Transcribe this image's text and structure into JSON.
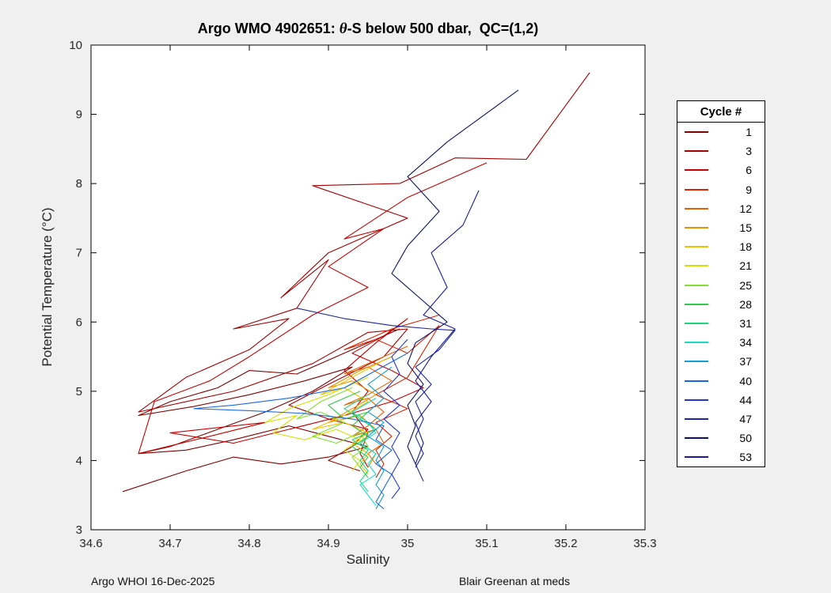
{
  "title": {
    "prefix": "Argo WMO 4902651: ",
    "theta": "θ",
    "suffix": "-S below 500 dbar,  QC=(1,2)"
  },
  "footer": {
    "left": "Argo WHOI 16-Dec-2025",
    "right": "Blair Greenan at meds"
  },
  "legend": {
    "title": "Cycle #"
  },
  "chart_data": {
    "type": "line",
    "title": "Argo WMO 4902651: θ-S below 500 dbar, QC=(1,2)",
    "xlabel": "Salinity",
    "ylabel": "Potential Temperature (°C)",
    "xlim": [
      34.6,
      35.3
    ],
    "ylim": [
      3,
      10
    ],
    "xticks": [
      34.6,
      34.7,
      34.8,
      34.9,
      35.0,
      35.1,
      35.2,
      35.3
    ],
    "xtick_labels": [
      "34.6",
      "34.7",
      "34.8",
      "34.9",
      "35",
      "35.1",
      "35.2",
      "35.3"
    ],
    "yticks": [
      3,
      4,
      5,
      6,
      7,
      8,
      9,
      10
    ],
    "ytick_labels": [
      "3",
      "4",
      "5",
      "6",
      "7",
      "8",
      "9",
      "10"
    ],
    "grid": false,
    "legend_position": "right-outside",
    "legend_title": "Cycle #",
    "series": [
      {
        "name": "1",
        "color": "#800000",
        "points": [
          [
            34.99,
            5.9
          ],
          [
            34.93,
            5.6
          ],
          [
            34.86,
            5.25
          ],
          [
            34.8,
            5.3
          ],
          [
            34.76,
            5.05
          ],
          [
            34.7,
            4.85
          ],
          [
            34.66,
            4.65
          ],
          [
            34.73,
            4.78
          ],
          [
            34.8,
            4.95
          ],
          [
            34.87,
            5.15
          ],
          [
            34.93,
            5.35
          ],
          [
            34.88,
            5.0
          ],
          [
            34.82,
            4.7
          ],
          [
            34.76,
            4.45
          ],
          [
            34.7,
            4.2
          ],
          [
            34.66,
            4.1
          ],
          [
            34.72,
            4.15
          ],
          [
            34.78,
            4.3
          ],
          [
            34.85,
            4.5
          ],
          [
            34.9,
            4.35
          ],
          [
            34.95,
            4.2
          ],
          [
            34.9,
            4.05
          ],
          [
            34.84,
            3.95
          ],
          [
            34.78,
            4.05
          ],
          [
            34.72,
            3.85
          ],
          [
            34.64,
            3.55
          ]
        ]
      },
      {
        "name": "3",
        "color": "#a50000",
        "points": [
          [
            35.23,
            9.6
          ],
          [
            35.15,
            8.35
          ],
          [
            35.06,
            8.37
          ],
          [
            34.99,
            8.0
          ],
          [
            34.88,
            7.97
          ],
          [
            35.0,
            7.5
          ],
          [
            34.9,
            7.0
          ],
          [
            34.84,
            6.35
          ],
          [
            34.9,
            6.9
          ],
          [
            34.86,
            6.2
          ],
          [
            34.78,
            5.9
          ],
          [
            34.85,
            6.05
          ],
          [
            34.8,
            5.6
          ],
          [
            34.72,
            5.2
          ],
          [
            34.66,
            4.7
          ],
          [
            34.78,
            5.0
          ],
          [
            34.88,
            5.4
          ],
          [
            34.95,
            5.85
          ],
          [
            35.0,
            5.9
          ],
          [
            34.97,
            5.5
          ],
          [
            34.9,
            5.1
          ],
          [
            34.85,
            4.8
          ],
          [
            34.9,
            4.6
          ],
          [
            34.95,
            4.45
          ],
          [
            34.93,
            4.2
          ],
          [
            34.9,
            4.0
          ],
          [
            34.94,
            3.85
          ]
        ]
      },
      {
        "name": "6",
        "color": "#c40000",
        "points": [
          [
            35.1,
            8.3
          ],
          [
            35.0,
            7.8
          ],
          [
            34.92,
            7.2
          ],
          [
            34.97,
            7.35
          ],
          [
            34.9,
            6.8
          ],
          [
            34.95,
            6.5
          ],
          [
            34.88,
            6.1
          ],
          [
            34.8,
            5.5
          ],
          [
            34.75,
            5.15
          ],
          [
            34.68,
            4.85
          ],
          [
            34.66,
            4.1
          ],
          [
            34.75,
            4.35
          ],
          [
            34.82,
            4.55
          ],
          [
            34.7,
            4.4
          ],
          [
            34.78,
            4.25
          ],
          [
            34.85,
            4.45
          ],
          [
            34.92,
            4.65
          ],
          [
            34.98,
            4.85
          ],
          [
            35.02,
            5.05
          ],
          [
            34.98,
            5.3
          ],
          [
            34.93,
            5.55
          ],
          [
            34.97,
            5.8
          ],
          [
            35.0,
            6.05
          ],
          [
            34.96,
            5.7
          ],
          [
            34.92,
            5.3
          ],
          [
            34.95,
            5.0
          ],
          [
            34.93,
            4.7
          ],
          [
            34.95,
            4.4
          ],
          [
            34.94,
            4.1
          ],
          [
            34.95,
            3.9
          ]
        ]
      },
      {
        "name": "9",
        "color": "#db2500",
        "points": [
          [
            35.04,
            6.1
          ],
          [
            34.98,
            5.9
          ],
          [
            34.92,
            5.6
          ],
          [
            34.96,
            5.75
          ],
          [
            35.0,
            5.55
          ],
          [
            35.04,
            5.95
          ],
          [
            35.0,
            5.2
          ],
          [
            34.96,
            4.95
          ],
          [
            35.0,
            4.75
          ],
          [
            34.96,
            4.55
          ],
          [
            34.98,
            4.35
          ],
          [
            34.96,
            4.15
          ],
          [
            34.97,
            3.95
          ],
          [
            34.96,
            3.75
          ]
        ]
      },
      {
        "name": "12",
        "color": "#e65f00",
        "points": [
          [
            35.0,
            5.65
          ],
          [
            34.96,
            5.45
          ],
          [
            34.92,
            5.25
          ],
          [
            34.95,
            5.35
          ],
          [
            34.98,
            5.15
          ],
          [
            34.95,
            4.95
          ],
          [
            34.92,
            4.8
          ],
          [
            34.95,
            4.9
          ],
          [
            34.97,
            4.7
          ],
          [
            34.95,
            4.5
          ],
          [
            34.93,
            4.35
          ],
          [
            34.96,
            4.45
          ],
          [
            34.97,
            4.25
          ],
          [
            34.95,
            4.1
          ],
          [
            34.96,
            3.95
          ]
        ]
      },
      {
        "name": "15",
        "color": "#e69100",
        "points": [
          [
            34.98,
            5.5
          ],
          [
            34.94,
            5.3
          ],
          [
            34.9,
            5.05
          ],
          [
            34.93,
            5.15
          ],
          [
            34.96,
            4.95
          ],
          [
            34.93,
            4.75
          ],
          [
            34.9,
            4.55
          ],
          [
            34.94,
            4.65
          ],
          [
            34.96,
            4.45
          ],
          [
            34.94,
            4.25
          ],
          [
            34.96,
            4.1
          ],
          [
            34.95,
            3.9
          ]
        ]
      },
      {
        "name": "18",
        "color": "#f0c000",
        "points": [
          [
            34.97,
            5.45
          ],
          [
            34.93,
            5.2
          ],
          [
            34.89,
            4.95
          ],
          [
            34.92,
            5.05
          ],
          [
            34.95,
            4.85
          ],
          [
            34.92,
            4.65
          ],
          [
            34.88,
            4.45
          ],
          [
            34.92,
            4.55
          ],
          [
            34.95,
            4.4
          ],
          [
            34.93,
            4.25
          ],
          [
            34.95,
            4.1
          ],
          [
            34.94,
            3.95
          ],
          [
            34.95,
            3.8
          ]
        ]
      },
      {
        "name": "21",
        "color": "#d6e000",
        "points": [
          [
            34.95,
            5.2
          ],
          [
            34.9,
            4.95
          ],
          [
            34.85,
            4.75
          ],
          [
            34.82,
            4.55
          ],
          [
            34.86,
            4.65
          ],
          [
            34.83,
            4.4
          ],
          [
            34.87,
            4.3
          ],
          [
            34.91,
            4.45
          ],
          [
            34.94,
            4.3
          ],
          [
            34.92,
            4.15
          ],
          [
            34.94,
            4.0
          ],
          [
            34.93,
            3.85
          ]
        ]
      },
      {
        "name": "25",
        "color": "#7fe030",
        "points": [
          [
            34.93,
            5.05
          ],
          [
            34.89,
            4.85
          ],
          [
            34.86,
            4.6
          ],
          [
            34.89,
            4.7
          ],
          [
            34.92,
            4.55
          ],
          [
            34.88,
            4.35
          ],
          [
            34.91,
            4.25
          ],
          [
            34.94,
            4.4
          ],
          [
            34.95,
            4.2
          ],
          [
            34.93,
            4.05
          ],
          [
            34.94,
            3.9
          ]
        ]
      },
      {
        "name": "28",
        "color": "#2ecc44",
        "points": [
          [
            34.94,
            5.0
          ],
          [
            34.9,
            4.8
          ],
          [
            34.92,
            4.6
          ],
          [
            34.95,
            4.7
          ],
          [
            34.93,
            4.5
          ],
          [
            34.95,
            4.35
          ],
          [
            34.93,
            4.2
          ],
          [
            34.95,
            4.05
          ],
          [
            34.94,
            3.9
          ],
          [
            34.95,
            3.75
          ]
        ]
      },
      {
        "name": "31",
        "color": "#17d97a",
        "points": [
          [
            34.95,
            4.95
          ],
          [
            34.92,
            4.75
          ],
          [
            34.94,
            4.6
          ],
          [
            34.96,
            4.45
          ],
          [
            34.93,
            4.3
          ],
          [
            34.95,
            4.15
          ],
          [
            34.94,
            4.0
          ],
          [
            34.95,
            3.85
          ],
          [
            34.94,
            3.7
          ],
          [
            34.95,
            3.55
          ]
        ]
      },
      {
        "name": "34",
        "color": "#10dcc8",
        "points": [
          [
            34.96,
            4.9
          ],
          [
            34.93,
            4.7
          ],
          [
            34.95,
            4.55
          ],
          [
            34.96,
            4.4
          ],
          [
            34.94,
            4.25
          ],
          [
            34.96,
            4.1
          ],
          [
            34.95,
            3.95
          ],
          [
            34.96,
            3.8
          ],
          [
            34.94,
            3.65
          ],
          [
            34.95,
            3.5
          ],
          [
            34.96,
            3.35
          ]
        ]
      },
      {
        "name": "37",
        "color": "#0d9fd1",
        "points": [
          [
            34.98,
            5.35
          ],
          [
            34.95,
            5.1
          ],
          [
            34.97,
            4.9
          ],
          [
            34.95,
            4.7
          ],
          [
            34.97,
            4.55
          ],
          [
            34.95,
            4.35
          ],
          [
            34.97,
            4.2
          ],
          [
            34.96,
            4.0
          ],
          [
            34.97,
            3.85
          ],
          [
            34.96,
            3.65
          ],
          [
            34.97,
            3.5
          ],
          [
            34.96,
            3.3
          ]
        ]
      },
      {
        "name": "40",
        "color": "#1767e0",
        "points": [
          [
            35.0,
            5.55
          ],
          [
            34.96,
            5.3
          ],
          [
            34.92,
            5.05
          ],
          [
            34.85,
            4.9
          ],
          [
            34.78,
            4.8
          ],
          [
            34.73,
            4.75
          ],
          [
            34.8,
            4.72
          ],
          [
            34.87,
            4.68
          ],
          [
            34.93,
            4.6
          ],
          [
            34.97,
            4.5
          ],
          [
            34.96,
            4.3
          ],
          [
            34.98,
            4.15
          ],
          [
            34.96,
            3.95
          ],
          [
            34.98,
            3.8
          ],
          [
            34.97,
            3.6
          ],
          [
            34.96,
            3.4
          ],
          [
            34.97,
            3.3
          ]
        ]
      },
      {
        "name": "44",
        "color": "#2336cc",
        "points": [
          [
            35.0,
            5.75
          ],
          [
            34.98,
            5.5
          ],
          [
            34.99,
            5.25
          ],
          [
            34.97,
            5.0
          ],
          [
            34.99,
            4.8
          ],
          [
            34.97,
            4.6
          ],
          [
            34.99,
            4.4
          ],
          [
            34.98,
            4.2
          ],
          [
            34.99,
            4.0
          ],
          [
            34.98,
            3.8
          ],
          [
            34.99,
            3.6
          ],
          [
            34.98,
            3.45
          ]
        ]
      },
      {
        "name": "47",
        "color": "#1a2699",
        "points": [
          [
            34.86,
            6.2
          ],
          [
            34.92,
            6.05
          ],
          [
            34.98,
            5.95
          ],
          [
            35.03,
            5.9
          ],
          [
            35.06,
            5.88
          ],
          [
            35.04,
            5.6
          ],
          [
            35.01,
            5.35
          ],
          [
            35.03,
            5.1
          ],
          [
            35.01,
            4.85
          ],
          [
            35.02,
            4.6
          ],
          [
            35.01,
            4.35
          ],
          [
            35.02,
            4.1
          ],
          [
            35.01,
            3.9
          ]
        ]
      },
      {
        "name": "50",
        "color": "#0d1166",
        "points": [
          [
            35.14,
            9.35
          ],
          [
            35.05,
            8.6
          ],
          [
            35.0,
            8.1
          ],
          [
            35.04,
            7.6
          ],
          [
            35.0,
            7.1
          ],
          [
            34.98,
            6.7
          ],
          [
            35.02,
            6.3
          ],
          [
            35.05,
            6.0
          ],
          [
            35.01,
            5.7
          ],
          [
            35.0,
            5.4
          ],
          [
            35.02,
            5.1
          ],
          [
            35.0,
            4.8
          ],
          [
            35.01,
            4.5
          ],
          [
            35.0,
            4.2
          ],
          [
            35.01,
            3.95
          ]
        ]
      },
      {
        "name": "53",
        "color": "#1a1a99",
        "points": [
          [
            35.09,
            7.9
          ],
          [
            35.07,
            7.4
          ],
          [
            35.03,
            7.0
          ],
          [
            35.05,
            6.5
          ],
          [
            35.02,
            6.1
          ],
          [
            35.06,
            5.9
          ],
          [
            35.03,
            5.5
          ],
          [
            35.01,
            5.15
          ],
          [
            35.03,
            4.85
          ],
          [
            35.01,
            4.55
          ],
          [
            35.02,
            4.25
          ],
          [
            35.01,
            3.95
          ],
          [
            35.02,
            3.7
          ]
        ]
      }
    ]
  }
}
